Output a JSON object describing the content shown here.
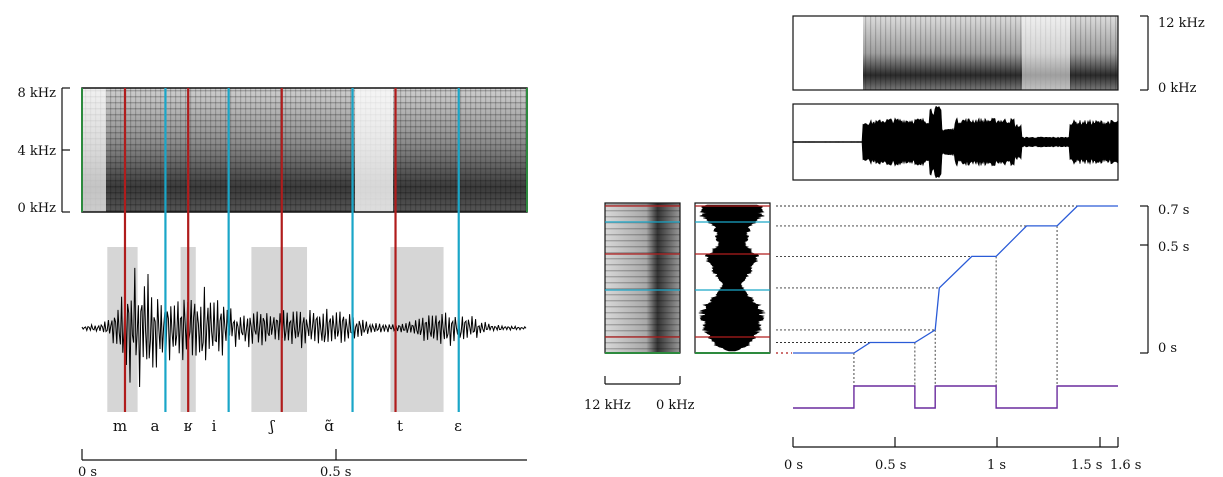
{
  "left_panel": {
    "freq_ticks": [
      "8 kHz",
      "4 kHz",
      "0 kHz"
    ],
    "phonemes": [
      "m",
      "a",
      "ʁ",
      "i",
      "ʃ",
      "ɑ̃",
      "t",
      "ɛ"
    ],
    "time_ticks": [
      "0 s",
      "0.5 s"
    ],
    "shaded_segments": [
      [
        0.05,
        0.11
      ],
      [
        0.195,
        0.225
      ],
      [
        0.335,
        0.445
      ],
      [
        0.61,
        0.715
      ]
    ],
    "red_markers_s": [
      0.085,
      0.21,
      0.395,
      0.62
    ],
    "cyan_markers_s": [
      0.165,
      0.29,
      0.535,
      0.745
    ]
  },
  "right_panel": {
    "spec_freq_ticks": [
      "12 kHz",
      "0 kHz"
    ],
    "small_spec_freq_ticks": [
      "12 kHz",
      "0 kHz"
    ],
    "time_axis_ticks": [
      "0 s",
      "0.5 s",
      "1 s",
      "1.5 s",
      "1.6 s"
    ],
    "warp_ticks": [
      "0.7 s",
      "0.5 s",
      "0 s"
    ],
    "colors": {
      "curve": "#2a5bd7",
      "gate": "#6a2b9e",
      "red": "#b01c1c",
      "cyan": "#1aa6c8",
      "green": "#2d8a3e"
    }
  },
  "chart_data": {
    "type": "line",
    "x": [
      0,
      0.3,
      0.38,
      0.6,
      0.7,
      0.72,
      0.88,
      1.0,
      1.15,
      1.3,
      1.4,
      1.6
    ],
    "series": [
      {
        "values": [
          0,
          0,
          0.05,
          0.05,
          0.11,
          0.31,
          0.46,
          0.46,
          0.605,
          0.605,
          0.7,
          0.7
        ]
      }
    ],
    "gate_on_intervals": [
      [
        0.3,
        0.6
      ],
      [
        0.7,
        1.0
      ],
      [
        1.3,
        1.6
      ]
    ],
    "xlim": [
      0,
      1.6
    ],
    "ylim": [
      0,
      0.7
    ],
    "xlabel": "",
    "ylabel": ""
  }
}
